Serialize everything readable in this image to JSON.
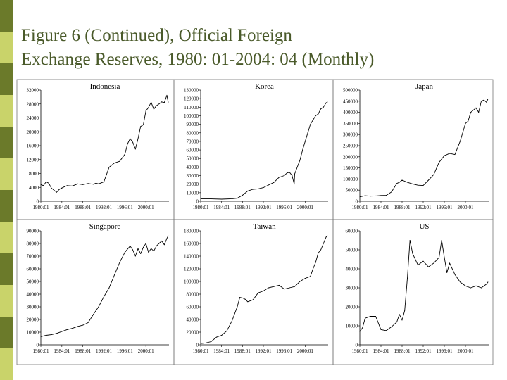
{
  "title_lines": [
    "Figure 6 (Continued), Official Foreign",
    "Exchange Reserves, 1980: 01-2004: 04 (Monthly)"
  ],
  "colors": {
    "title": "#4a5a2a",
    "bar_dark": "#6b7a2a",
    "bar_light": "#c9d36a",
    "line": "#000000"
  },
  "chart_data": [
    {
      "type": "line",
      "title": "Indonesia",
      "ylim": [
        0,
        32000
      ],
      "yticks": [
        0,
        4000,
        8000,
        12000,
        16000,
        20000,
        24000,
        28000,
        32000
      ],
      "xticks": [
        "1980:01",
        "1984:01",
        "1988:01",
        "1992:01",
        "1996:01",
        "2000:01"
      ],
      "x": [
        1980.0,
        1980.5,
        1981.0,
        1981.5,
        1982.0,
        1982.5,
        1983.0,
        1983.5,
        1984.0,
        1984.5,
        1985.0,
        1986.0,
        1987.0,
        1988.0,
        1989.0,
        1990.0,
        1990.5,
        1991.0,
        1992.0,
        1993.0,
        1994.0,
        1995.0,
        1996.0,
        1996.5,
        1997.0,
        1997.5,
        1998.0,
        1998.5,
        1999.0,
        1999.5,
        2000.0,
        2000.5,
        2001.0,
        2001.5,
        2002.0,
        2002.5,
        2003.0,
        2003.5,
        2004.0,
        2004.25
      ],
      "y": [
        4800,
        4500,
        5600,
        5200,
        3800,
        3200,
        2600,
        3400,
        3800,
        4200,
        4500,
        4400,
        5000,
        4800,
        5100,
        4900,
        5200,
        5000,
        5600,
        9800,
        11000,
        11500,
        13500,
        16500,
        18000,
        17000,
        15000,
        18000,
        21500,
        22000,
        26000,
        27000,
        28500,
        26500,
        27500,
        28000,
        28600,
        28400,
        30500,
        28500
      ]
    },
    {
      "type": "line",
      "title": "Korea",
      "ylim": [
        0,
        130000
      ],
      "yticks": [
        0,
        10000,
        20000,
        30000,
        40000,
        50000,
        60000,
        70000,
        80000,
        90000,
        100000,
        110000,
        120000,
        130000
      ],
      "xticks": [
        "1980:01",
        "1984:01",
        "1988:01",
        "1992:01",
        "1996:01",
        "2000:01"
      ],
      "x": [
        1980.0,
        1982.0,
        1984.0,
        1986.0,
        1987.0,
        1988.0,
        1989.0,
        1990.0,
        1991.0,
        1992.0,
        1993.0,
        1994.0,
        1995.0,
        1996.0,
        1996.5,
        1997.0,
        1997.5,
        1997.9,
        1998.0,
        1998.5,
        1999.0,
        1999.5,
        2000.0,
        2000.5,
        2001.0,
        2001.5,
        2002.0,
        2002.5,
        2003.0,
        2003.5,
        2004.0,
        2004.25
      ],
      "y": [
        3000,
        2800,
        2500,
        3000,
        3500,
        7000,
        12000,
        14000,
        14500,
        16000,
        19000,
        22000,
        28000,
        30000,
        33000,
        34000,
        30000,
        20000,
        32000,
        40000,
        48000,
        60000,
        70000,
        80000,
        90000,
        95000,
        100000,
        102000,
        108000,
        110000,
        115000,
        116000
      ]
    },
    {
      "type": "line",
      "title": "Japan",
      "ylim": [
        0,
        500000
      ],
      "yticks": [
        0,
        50000,
        100000,
        150000,
        200000,
        250000,
        300000,
        350000,
        400000,
        450000,
        500000
      ],
      "xticks": [
        "1980:01",
        "1984:01",
        "1988:01",
        "1992:01",
        "1996:01",
        "2000:01"
      ],
      "x": [
        1980.0,
        1981.0,
        1982.0,
        1983.0,
        1984.0,
        1985.0,
        1986.0,
        1987.0,
        1987.5,
        1988.0,
        1989.0,
        1990.0,
        1991.0,
        1992.0,
        1993.0,
        1994.0,
        1995.0,
        1996.0,
        1997.0,
        1998.0,
        1999.0,
        2000.0,
        2000.5,
        2001.0,
        2002.0,
        2002.5,
        2003.0,
        2003.5,
        2004.0,
        2004.25
      ],
      "y": [
        20000,
        25000,
        23000,
        24000,
        26000,
        26500,
        42000,
        80000,
        85000,
        95000,
        85000,
        78000,
        72000,
        71000,
        95000,
        120000,
        175000,
        205000,
        215000,
        210000,
        270000,
        350000,
        360000,
        400000,
        420000,
        400000,
        450000,
        455000,
        445000,
        460000
      ]
    },
    {
      "type": "line",
      "title": "Singapore",
      "ylim": [
        0,
        90000
      ],
      "yticks": [
        0,
        10000,
        20000,
        30000,
        40000,
        50000,
        60000,
        70000,
        80000,
        90000
      ],
      "xticks": [
        "1980:01",
        "1984:01",
        "1988:01",
        "1992:01",
        "1996:01",
        "2000:01"
      ],
      "x": [
        1980.0,
        1981.0,
        1982.0,
        1983.0,
        1984.0,
        1985.0,
        1986.0,
        1987.0,
        1988.0,
        1989.0,
        1990.0,
        1991.0,
        1992.0,
        1993.0,
        1994.0,
        1995.0,
        1996.0,
        1997.0,
        1997.5,
        1998.0,
        1998.5,
        1999.0,
        1999.5,
        2000.0,
        2000.5,
        2001.0,
        2001.5,
        2002.0,
        2002.5,
        2003.0,
        2003.5,
        2004.0,
        2004.25
      ],
      "y": [
        6500,
        7500,
        8000,
        9000,
        10500,
        12000,
        13000,
        14500,
        15500,
        17500,
        24000,
        30000,
        38000,
        45000,
        55000,
        65000,
        73000,
        78000,
        75000,
        70000,
        76000,
        72000,
        77000,
        80000,
        73000,
        76000,
        74000,
        78000,
        80000,
        82000,
        79000,
        84000,
        86000
      ]
    },
    {
      "type": "line",
      "title": "Taiwan",
      "ylim": [
        0,
        180000
      ],
      "yticks": [
        0,
        20000,
        40000,
        60000,
        80000,
        100000,
        120000,
        140000,
        160000,
        180000
      ],
      "xticks": [
        "1980:01",
        "1984:01",
        "1988:01",
        "1992:01",
        "1996:01",
        "2000:01"
      ],
      "x": [
        1980.0,
        1981.0,
        1982.0,
        1983.0,
        1984.0,
        1985.0,
        1986.0,
        1987.0,
        1987.5,
        1988.0,
        1988.5,
        1989.0,
        1990.0,
        1991.0,
        1992.0,
        1993.0,
        1994.0,
        1995.0,
        1996.0,
        1997.0,
        1998.0,
        1999.0,
        2000.0,
        2001.0,
        2001.5,
        2002.0,
        2002.5,
        2003.0,
        2003.5,
        2004.0,
        2004.25
      ],
      "y": [
        2000,
        3000,
        5000,
        12000,
        15000,
        22000,
        38000,
        60000,
        75000,
        74000,
        72000,
        68000,
        71000,
        82000,
        85000,
        90000,
        92000,
        94000,
        88000,
        90000,
        92000,
        100000,
        105000,
        108000,
        120000,
        130000,
        145000,
        150000,
        160000,
        170000,
        172000
      ]
    },
    {
      "type": "line",
      "title": "US",
      "ylim": [
        0,
        60000
      ],
      "yticks": [
        0,
        10000,
        20000,
        30000,
        40000,
        50000,
        60000
      ],
      "xticks": [
        "1980:01",
        "1984:01",
        "1988:01",
        "1992:01",
        "1996:01",
        "2000:01"
      ],
      "x": [
        1980.0,
        1980.5,
        1981.0,
        1982.0,
        1983.0,
        1984.0,
        1985.0,
        1986.0,
        1987.0,
        1987.5,
        1988.0,
        1988.5,
        1989.0,
        1989.5,
        1990.0,
        1991.0,
        1992.0,
        1993.0,
        1994.0,
        1995.0,
        1995.5,
        1996.0,
        1996.5,
        1997.0,
        1998.0,
        1999.0,
        2000.0,
        2001.0,
        2002.0,
        2003.0,
        2004.0,
        2004.25
      ],
      "y": [
        7000,
        9000,
        14000,
        15000,
        15000,
        8000,
        7500,
        9500,
        12000,
        16000,
        13000,
        18000,
        35000,
        55000,
        48000,
        42000,
        44000,
        41000,
        43000,
        46000,
        55000,
        46000,
        38000,
        43000,
        37000,
        33000,
        31000,
        30000,
        31000,
        30000,
        32000,
        33000
      ]
    }
  ]
}
